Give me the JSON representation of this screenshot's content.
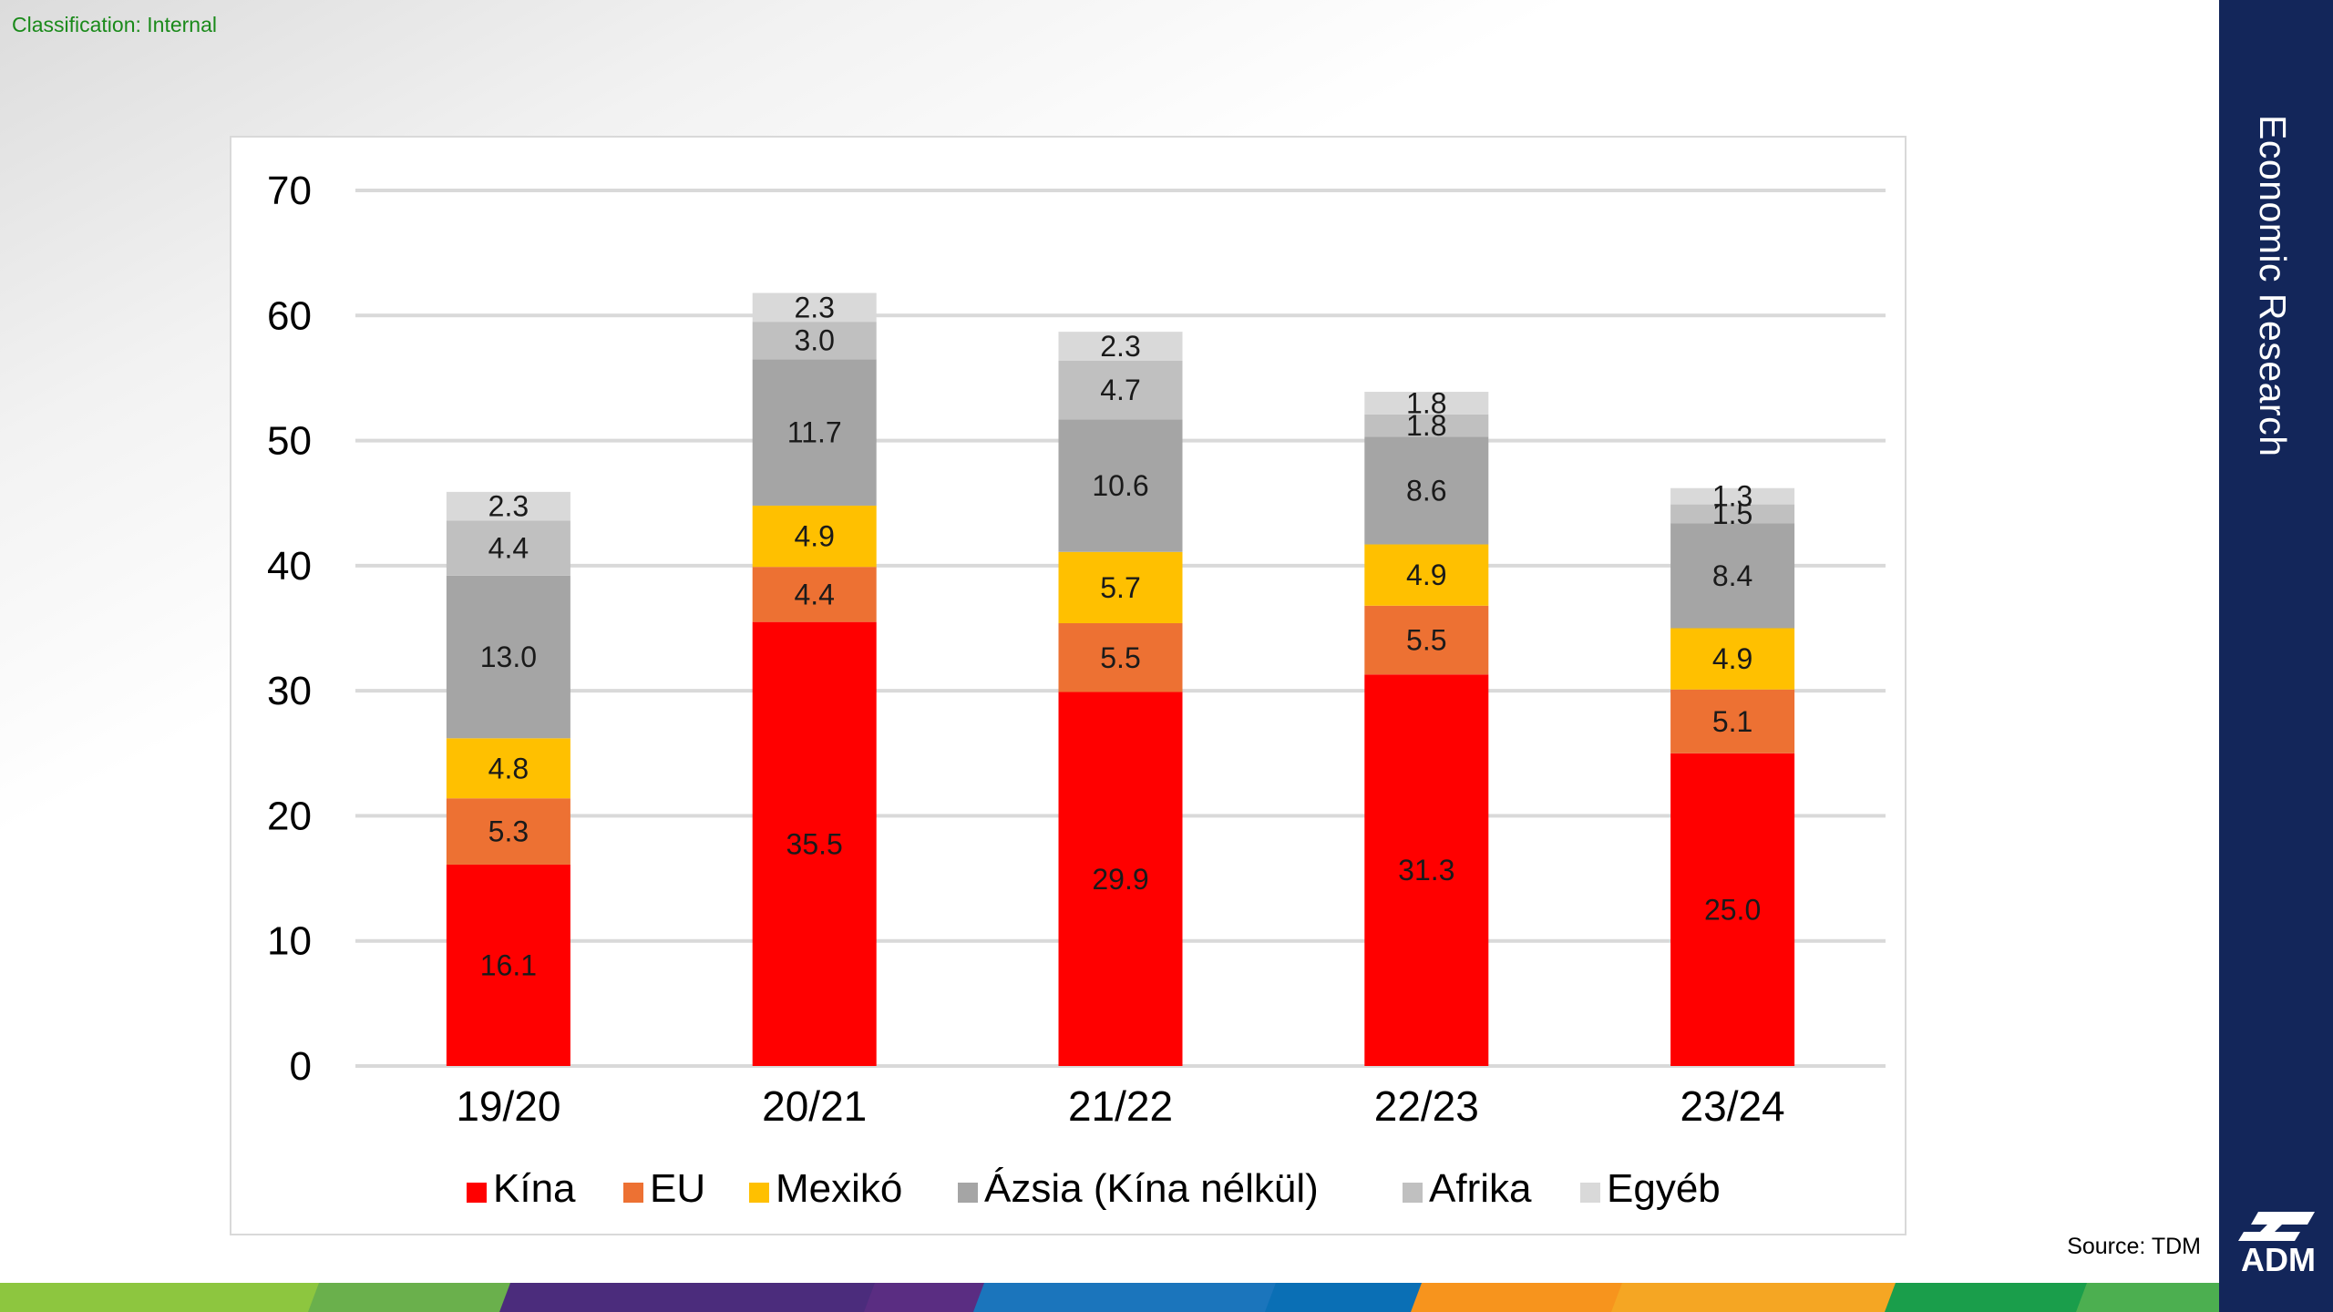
{
  "header": {
    "classification": "Classification: Internal"
  },
  "sidebar": {
    "title": "Economic Research",
    "logo_text": "ADM"
  },
  "footer": {
    "source": "Source: TDM"
  },
  "colors": {
    "sidebar": "#13265a",
    "stripe": [
      "#8dc63f",
      "#6ab04c",
      "#4b2c7c",
      "#5a2d82",
      "#1b75bc",
      "#0a6fb5",
      "#f7941d",
      "#f5a623",
      "#1a9e4b",
      "#4caf50"
    ]
  },
  "chart_data": {
    "type": "bar",
    "stacked": true,
    "categories": [
      "19/20",
      "20/21",
      "21/22",
      "22/23",
      "23/24"
    ],
    "series": [
      {
        "name": "Kína",
        "color": "#ff0000",
        "values": [
          16.1,
          35.5,
          29.9,
          31.3,
          25.0
        ],
        "labels": [
          "16.1",
          "35.5",
          "29.9",
          "31.3",
          "25.0"
        ]
      },
      {
        "name": "EU",
        "color": "#ed7133",
        "values": [
          5.3,
          4.4,
          5.5,
          5.5,
          5.1
        ],
        "labels": [
          "5.3",
          "4.4",
          "5.5",
          "5.5",
          "5.1"
        ]
      },
      {
        "name": "Mexikó",
        "color": "#ffc000",
        "values": [
          4.8,
          4.9,
          5.7,
          4.9,
          4.9
        ],
        "labels": [
          "4.8",
          "4.9",
          "5.7",
          "4.9",
          "4.9"
        ]
      },
      {
        "name": "Ázsia (Kína nélkül)",
        "color": "#a5a5a5",
        "values": [
          13.0,
          11.7,
          10.6,
          8.6,
          8.4
        ],
        "labels": [
          "13.0",
          "11.7",
          "10.6",
          "8.6",
          "8.4"
        ]
      },
      {
        "name": "Afrika",
        "color": "#c0c0c0",
        "values": [
          4.4,
          3.0,
          4.7,
          1.8,
          1.5
        ],
        "labels": [
          "4.4",
          "3.0",
          "4.7",
          "1.8",
          "1.5"
        ]
      },
      {
        "name": "Egyéb",
        "color": "#d9d9d9",
        "values": [
          2.3,
          2.3,
          2.3,
          1.8,
          1.3
        ],
        "labels": [
          "2.3",
          "2.3",
          "2.3",
          "1.8",
          "1.3"
        ]
      }
    ],
    "ylim": [
      0,
      70
    ],
    "yticks": [
      "0",
      "10",
      "20",
      "30",
      "40",
      "50",
      "60",
      "70"
    ],
    "grid": true,
    "legend_position": "bottom"
  }
}
